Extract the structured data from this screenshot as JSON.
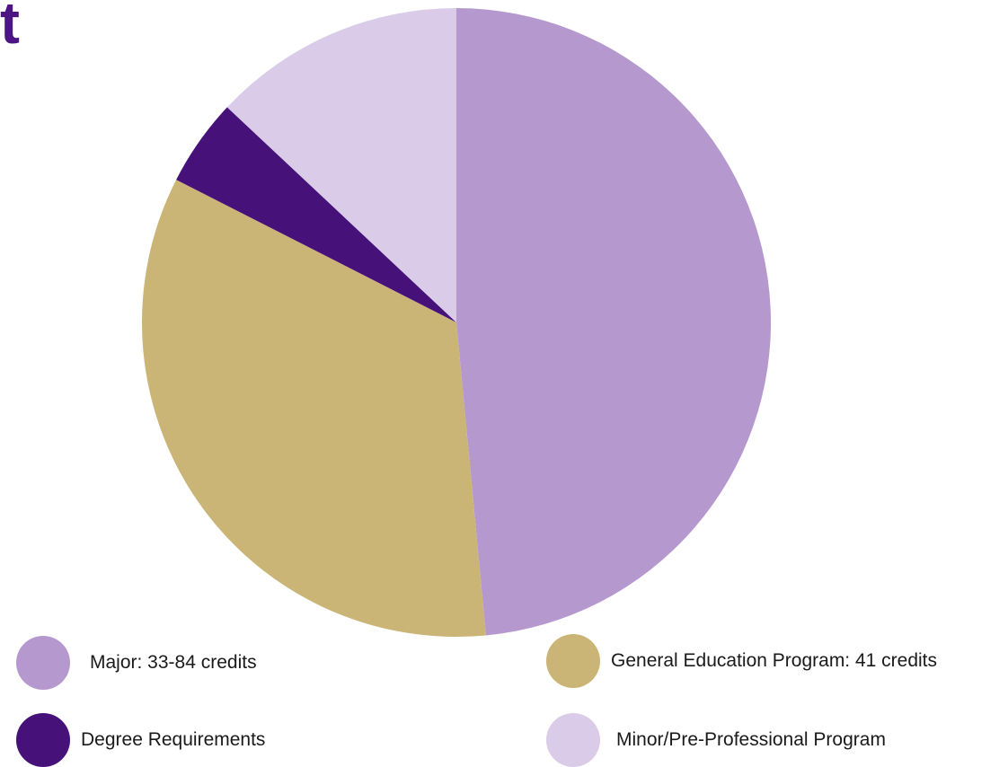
{
  "page": {
    "title_fragment": "t"
  },
  "colors": {
    "title": "#4b1584",
    "label_text": "#1a1a1a"
  },
  "chart_data": {
    "type": "pie",
    "title": "",
    "start": "12 o'clock, clockwise",
    "legend_placement": "bottom",
    "slices": [
      {
        "label": "Major: 33-84 credits",
        "value": 48.5,
        "color": "#b599ce"
      },
      {
        "label": "General Education Program: 41 credits",
        "value": 34.0,
        "color": "#cab577"
      },
      {
        "label": "Degree Requirements",
        "value": 4.5,
        "color": "#46127a"
      },
      {
        "label": "Minor/Pre-Professional Program",
        "value": 13.0,
        "color": "#dacce8"
      }
    ]
  }
}
